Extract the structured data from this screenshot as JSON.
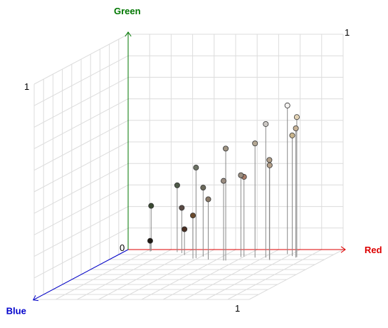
{
  "chart_data": {
    "type": "scatter",
    "projection": "3d",
    "title": "",
    "axes": {
      "x": {
        "label": "Red",
        "range": [
          0,
          1
        ],
        "color": "#dd0000"
      },
      "y": {
        "label": "Green",
        "range": [
          0,
          1
        ],
        "color": "#007700"
      },
      "z": {
        "label": "Blue",
        "range": [
          0,
          1
        ],
        "color": "#0000cc"
      }
    },
    "tick_labels": {
      "origin": "0",
      "x_max": "1",
      "y_max": "1",
      "z_max": "1"
    },
    "grid": true,
    "points": [
      {
        "r": 0.12,
        "g": 0.05,
        "b": 0.04,
        "color": "#1f1a14"
      },
      {
        "r": 0.12,
        "g": 0.21,
        "b": 0.03,
        "color": "#3a4a32"
      },
      {
        "r": 0.31,
        "g": 0.12,
        "b": 0.11,
        "color": "#4a3024"
      },
      {
        "r": 0.28,
        "g": 0.21,
        "b": 0.07,
        "color": "#5a4a44"
      },
      {
        "r": 0.25,
        "g": 0.31,
        "b": 0.05,
        "color": "#4e5a48"
      },
      {
        "r": 0.38,
        "g": 0.2,
        "b": 0.18,
        "color": "#6a4a2c"
      },
      {
        "r": 0.41,
        "g": 0.32,
        "b": 0.14,
        "color": "#6c6a5c"
      },
      {
        "r": 0.39,
        "g": 0.42,
        "b": 0.17,
        "color": "#6e7466"
      },
      {
        "r": 0.46,
        "g": 0.28,
        "b": 0.2,
        "color": "#8a7a68"
      },
      {
        "r": 0.54,
        "g": 0.37,
        "b": 0.22,
        "color": "#9a8c80"
      },
      {
        "r": 0.59,
        "g": 0.38,
        "b": 0.15,
        "color": "#9a8e80"
      },
      {
        "r": 0.6,
        "g": 0.37,
        "b": 0.14,
        "color": "#a87c68"
      },
      {
        "r": 0.55,
        "g": 0.52,
        "b": 0.22,
        "color": "#a09584"
      },
      {
        "r": 0.66,
        "g": 0.53,
        "b": 0.16,
        "color": "#b4a894"
      },
      {
        "r": 0.74,
        "g": 0.46,
        "b": 0.19,
        "color": "#b2a08a"
      },
      {
        "r": 0.75,
        "g": 0.44,
        "b": 0.21,
        "color": "#b4a08a"
      },
      {
        "r": 0.71,
        "g": 0.62,
        "b": 0.16,
        "color": "#ccc8c4"
      },
      {
        "r": 0.78,
        "g": 0.69,
        "b": 0.09,
        "color": "#f4f2f0"
      },
      {
        "r": 0.82,
        "g": 0.56,
        "b": 0.13,
        "color": "#c8b48c"
      },
      {
        "r": 0.85,
        "g": 0.6,
        "b": 0.16,
        "color": "#c8b498"
      },
      {
        "r": 0.85,
        "g": 0.65,
        "b": 0.15,
        "color": "#e2d2b4"
      }
    ]
  }
}
